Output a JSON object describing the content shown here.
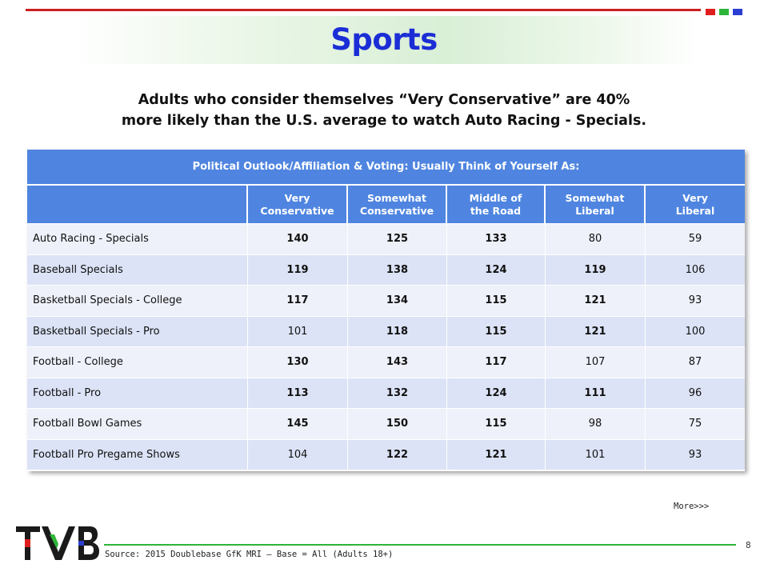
{
  "title": "Sports",
  "headline": {
    "line1": "Adults who consider themselves “Very Conservative” are 40%",
    "line2": "more likely than the U.S. average to watch Auto Racing - Specials."
  },
  "table": {
    "header": "Political Outlook/Affiliation & Voting: Usually Think of Yourself As:",
    "columns": [
      "",
      "Very\nConservative",
      "Somewhat\nConservative",
      "Middle of\nthe Road",
      "Somewhat\nLiberal",
      "Very\nLiberal"
    ],
    "rows": [
      {
        "label": "Auto Racing - Specials",
        "values": [
          "140",
          "125",
          "133",
          "80",
          "59"
        ],
        "bold": [
          true,
          true,
          true,
          false,
          false
        ]
      },
      {
        "label": "Baseball Specials",
        "values": [
          "119",
          "138",
          "124",
          "119",
          "106"
        ],
        "bold": [
          true,
          true,
          true,
          true,
          false
        ]
      },
      {
        "label": "Basketball Specials - College",
        "values": [
          "117",
          "134",
          "115",
          "121",
          "93"
        ],
        "bold": [
          true,
          true,
          true,
          true,
          false
        ]
      },
      {
        "label": "Basketball Specials - Pro",
        "values": [
          "101",
          "118",
          "115",
          "121",
          "100"
        ],
        "bold": [
          false,
          true,
          true,
          true,
          false
        ]
      },
      {
        "label": "Football - College",
        "values": [
          "130",
          "143",
          "117",
          "107",
          "87"
        ],
        "bold": [
          true,
          true,
          true,
          false,
          false
        ]
      },
      {
        "label": "Football - Pro",
        "values": [
          "113",
          "132",
          "124",
          "111",
          "96"
        ],
        "bold": [
          true,
          true,
          true,
          true,
          false
        ]
      },
      {
        "label": "Football Bowl Games",
        "values": [
          "145",
          "150",
          "115",
          "98",
          "75"
        ],
        "bold": [
          true,
          true,
          true,
          false,
          false
        ]
      },
      {
        "label": "Football Pro Pregame Shows",
        "values": [
          "104",
          "122",
          "121",
          "101",
          "93"
        ],
        "bold": [
          false,
          true,
          true,
          false,
          false
        ]
      }
    ]
  },
  "more_link": "More>>>",
  "source": "Source: 2015 Doublebase GfK MRI – Base = All (Adults 18+)",
  "page_number": "8",
  "logo_text": "TVB",
  "colors": {
    "title": "#1b2ed6",
    "table_header": "#4f85e0",
    "row_light": "#eef1fa",
    "row_dark": "#dce3f6",
    "accent_red": "#e01e1e",
    "accent_green": "#2db53a",
    "accent_blue": "#2a3fd1"
  }
}
